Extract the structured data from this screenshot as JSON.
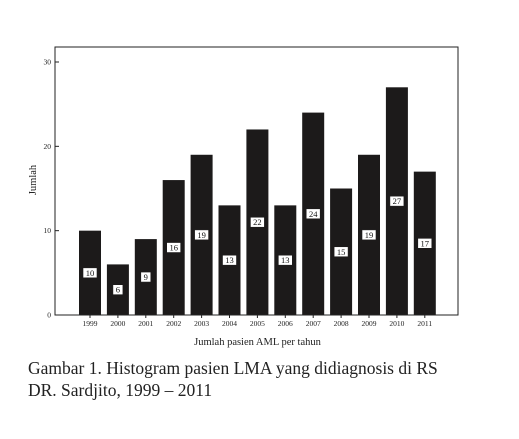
{
  "chart_data": {
    "type": "bar",
    "categories": [
      "1999",
      "2000",
      "2001",
      "2002",
      "2003",
      "2004",
      "2005",
      "2006",
      "2007",
      "2008",
      "2009",
      "2010",
      "2011"
    ],
    "values": [
      10,
      6,
      9,
      16,
      19,
      13,
      22,
      13,
      24,
      15,
      19,
      27,
      17
    ],
    "data_labels": [
      "10",
      "6",
      "9",
      "16",
      "19",
      "13",
      "22",
      "13",
      "24",
      "15",
      "19",
      "27",
      "17"
    ],
    "xlabel": "Jumlah pasien AML per tahun",
    "ylabel": "Jumlah",
    "ylim": [
      0,
      30
    ],
    "yticks": [
      0,
      10,
      20,
      30
    ],
    "ytick_labels": [
      "0",
      "10",
      "20",
      "30"
    ],
    "grid": false,
    "legend": "none",
    "bar_color": "#1c1a1a"
  },
  "caption": {
    "line1": "Gambar 1. Histogram pasien LMA yang didiagnosis di RS",
    "line2": "DR. Sardjito, 1999 – 2011"
  }
}
